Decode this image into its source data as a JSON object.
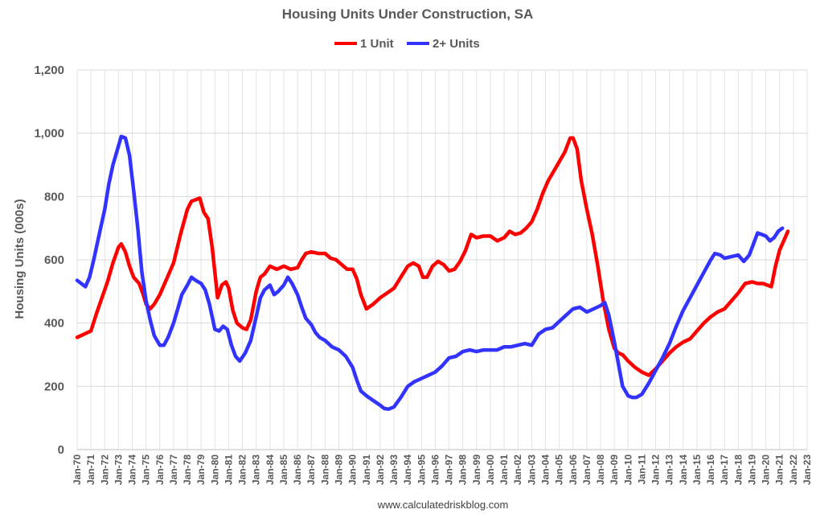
{
  "chart_data": {
    "type": "line",
    "title": "Housing Units Under Construction, SA",
    "xlabel": "",
    "ylabel": "Housing Units (000s)",
    "ylim": [
      0,
      1200
    ],
    "y_ticks": [
      0,
      200,
      400,
      600,
      800,
      1000,
      1200
    ],
    "y_tick_labels": [
      "0",
      "200",
      "400",
      "600",
      "800",
      "1,000",
      "1,200"
    ],
    "x_range": [
      1970,
      2023
    ],
    "x_tick_labels": [
      "Jan-70",
      "Jan-71",
      "Jan-72",
      "Jan-73",
      "Jan-74",
      "Jan-75",
      "Jan-76",
      "Jan-77",
      "Jan-78",
      "Jan-79",
      "Jan-80",
      "Jan-81",
      "Jan-82",
      "Jan-83",
      "Jan-84",
      "Jan-85",
      "Jan-86",
      "Jan-87",
      "Jan-88",
      "Jan-89",
      "Jan-90",
      "Jan-91",
      "Jan-92",
      "Jan-93",
      "Jan-94",
      "Jan-95",
      "Jan-96",
      "Jan-97",
      "Jan-98",
      "Jan-99",
      "Jan-00",
      "Jan-01",
      "Jan-02",
      "Jan-03",
      "Jan-04",
      "Jan-05",
      "Jan-06",
      "Jan-07",
      "Jan-08",
      "Jan-09",
      "Jan-10",
      "Jan-11",
      "Jan-12",
      "Jan-13",
      "Jan-14",
      "Jan-15",
      "Jan-16",
      "Jan-17",
      "Jan-18",
      "Jan-19",
      "Jan-20",
      "Jan-21",
      "Jan-22",
      "Jan-23"
    ],
    "grid": true,
    "legend_position": "top-center",
    "series": [
      {
        "name": "1 Unit",
        "color": "#ff0000",
        "points": [
          [
            1970.0,
            355
          ],
          [
            1970.5,
            365
          ],
          [
            1971.0,
            375
          ],
          [
            1971.4,
            430
          ],
          [
            1971.8,
            480
          ],
          [
            1972.2,
            530
          ],
          [
            1972.6,
            590
          ],
          [
            1973.0,
            640
          ],
          [
            1973.2,
            650
          ],
          [
            1973.5,
            625
          ],
          [
            1973.8,
            580
          ],
          [
            1974.1,
            545
          ],
          [
            1974.5,
            525
          ],
          [
            1974.8,
            490
          ],
          [
            1975.0,
            460
          ],
          [
            1975.3,
            445
          ],
          [
            1975.6,
            460
          ],
          [
            1976.0,
            490
          ],
          [
            1976.5,
            540
          ],
          [
            1977.0,
            590
          ],
          [
            1977.5,
            680
          ],
          [
            1978.0,
            760
          ],
          [
            1978.3,
            785
          ],
          [
            1978.6,
            790
          ],
          [
            1978.9,
            795
          ],
          [
            1979.2,
            750
          ],
          [
            1979.5,
            730
          ],
          [
            1979.8,
            640
          ],
          [
            1980.0,
            560
          ],
          [
            1980.2,
            480
          ],
          [
            1980.5,
            520
          ],
          [
            1980.8,
            530
          ],
          [
            1981.0,
            510
          ],
          [
            1981.3,
            440
          ],
          [
            1981.6,
            400
          ],
          [
            1982.0,
            385
          ],
          [
            1982.3,
            380
          ],
          [
            1982.6,
            410
          ],
          [
            1983.0,
            500
          ],
          [
            1983.3,
            545
          ],
          [
            1983.6,
            555
          ],
          [
            1984.0,
            580
          ],
          [
            1984.5,
            570
          ],
          [
            1985.0,
            580
          ],
          [
            1985.5,
            570
          ],
          [
            1986.0,
            575
          ],
          [
            1986.3,
            600
          ],
          [
            1986.6,
            620
          ],
          [
            1987.0,
            625
          ],
          [
            1987.5,
            620
          ],
          [
            1988.0,
            620
          ],
          [
            1988.4,
            605
          ],
          [
            1988.8,
            600
          ],
          [
            1989.2,
            585
          ],
          [
            1989.6,
            570
          ],
          [
            1990.0,
            570
          ],
          [
            1990.3,
            540
          ],
          [
            1990.6,
            490
          ],
          [
            1991.0,
            445
          ],
          [
            1991.5,
            460
          ],
          [
            1992.0,
            480
          ],
          [
            1992.5,
            495
          ],
          [
            1993.0,
            510
          ],
          [
            1993.5,
            545
          ],
          [
            1994.0,
            580
          ],
          [
            1994.4,
            590
          ],
          [
            1994.8,
            580
          ],
          [
            1995.1,
            545
          ],
          [
            1995.4,
            545
          ],
          [
            1995.8,
            580
          ],
          [
            1996.2,
            595
          ],
          [
            1996.6,
            585
          ],
          [
            1997.0,
            565
          ],
          [
            1997.4,
            570
          ],
          [
            1997.8,
            595
          ],
          [
            1998.2,
            630
          ],
          [
            1998.6,
            680
          ],
          [
            1999.0,
            670
          ],
          [
            1999.5,
            675
          ],
          [
            2000.0,
            675
          ],
          [
            2000.5,
            660
          ],
          [
            2001.0,
            670
          ],
          [
            2001.4,
            690
          ],
          [
            2001.8,
            680
          ],
          [
            2002.2,
            685
          ],
          [
            2002.6,
            700
          ],
          [
            2003.0,
            720
          ],
          [
            2003.4,
            760
          ],
          [
            2003.8,
            810
          ],
          [
            2004.2,
            850
          ],
          [
            2004.6,
            880
          ],
          [
            2005.0,
            910
          ],
          [
            2005.4,
            940
          ],
          [
            2005.8,
            985
          ],
          [
            2006.0,
            985
          ],
          [
            2006.3,
            950
          ],
          [
            2006.6,
            850
          ],
          [
            2007.0,
            760
          ],
          [
            2007.4,
            680
          ],
          [
            2007.8,
            580
          ],
          [
            2008.2,
            470
          ],
          [
            2008.6,
            380
          ],
          [
            2009.0,
            320
          ],
          [
            2009.3,
            305
          ],
          [
            2009.6,
            300
          ],
          [
            2010.0,
            280
          ],
          [
            2010.5,
            260
          ],
          [
            2011.0,
            245
          ],
          [
            2011.5,
            235
          ],
          [
            2012.0,
            255
          ],
          [
            2012.5,
            280
          ],
          [
            2013.0,
            305
          ],
          [
            2013.5,
            325
          ],
          [
            2014.0,
            340
          ],
          [
            2014.5,
            350
          ],
          [
            2015.0,
            375
          ],
          [
            2015.5,
            400
          ],
          [
            2016.0,
            420
          ],
          [
            2016.5,
            435
          ],
          [
            2017.0,
            445
          ],
          [
            2017.5,
            470
          ],
          [
            2018.0,
            495
          ],
          [
            2018.5,
            525
          ],
          [
            2019.0,
            530
          ],
          [
            2019.4,
            525
          ],
          [
            2019.8,
            525
          ],
          [
            2020.1,
            520
          ],
          [
            2020.4,
            515
          ],
          [
            2020.7,
            580
          ],
          [
            2021.0,
            630
          ],
          [
            2021.3,
            660
          ],
          [
            2021.6,
            690
          ]
        ]
      },
      {
        "name": "2+ Units",
        "color": "#3333ff",
        "points": [
          [
            1970.0,
            535
          ],
          [
            1970.3,
            525
          ],
          [
            1970.6,
            515
          ],
          [
            1970.9,
            545
          ],
          [
            1971.2,
            600
          ],
          [
            1971.6,
            680
          ],
          [
            1972.0,
            760
          ],
          [
            1972.3,
            840
          ],
          [
            1972.6,
            900
          ],
          [
            1973.0,
            960
          ],
          [
            1973.2,
            990
          ],
          [
            1973.5,
            985
          ],
          [
            1973.8,
            930
          ],
          [
            1974.1,
            820
          ],
          [
            1974.4,
            700
          ],
          [
            1974.7,
            560
          ],
          [
            1975.0,
            470
          ],
          [
            1975.3,
            410
          ],
          [
            1975.6,
            360
          ],
          [
            1976.0,
            330
          ],
          [
            1976.3,
            330
          ],
          [
            1976.6,
            355
          ],
          [
            1977.0,
            400
          ],
          [
            1977.3,
            445
          ],
          [
            1977.6,
            490
          ],
          [
            1978.0,
            520
          ],
          [
            1978.3,
            545
          ],
          [
            1978.6,
            535
          ],
          [
            1979.0,
            525
          ],
          [
            1979.3,
            505
          ],
          [
            1979.6,
            460
          ],
          [
            1980.0,
            380
          ],
          [
            1980.3,
            375
          ],
          [
            1980.6,
            390
          ],
          [
            1980.9,
            380
          ],
          [
            1981.2,
            330
          ],
          [
            1981.5,
            295
          ],
          [
            1981.8,
            280
          ],
          [
            1982.2,
            305
          ],
          [
            1982.6,
            345
          ],
          [
            1983.0,
            420
          ],
          [
            1983.3,
            480
          ],
          [
            1983.6,
            505
          ],
          [
            1984.0,
            520
          ],
          [
            1984.3,
            490
          ],
          [
            1984.6,
            500
          ],
          [
            1985.0,
            520
          ],
          [
            1985.3,
            545
          ],
          [
            1985.6,
            525
          ],
          [
            1986.0,
            490
          ],
          [
            1986.3,
            450
          ],
          [
            1986.6,
            415
          ],
          [
            1987.0,
            395
          ],
          [
            1987.3,
            370
          ],
          [
            1987.6,
            355
          ],
          [
            1988.0,
            345
          ],
          [
            1988.5,
            325
          ],
          [
            1989.0,
            315
          ],
          [
            1989.5,
            295
          ],
          [
            1990.0,
            260
          ],
          [
            1990.3,
            220
          ],
          [
            1990.6,
            185
          ],
          [
            1991.0,
            170
          ],
          [
            1991.5,
            155
          ],
          [
            1992.0,
            140
          ],
          [
            1992.3,
            130
          ],
          [
            1992.6,
            128
          ],
          [
            1993.0,
            135
          ],
          [
            1993.5,
            165
          ],
          [
            1994.0,
            200
          ],
          [
            1994.5,
            215
          ],
          [
            1995.0,
            225
          ],
          [
            1995.5,
            235
          ],
          [
            1996.0,
            245
          ],
          [
            1996.5,
            265
          ],
          [
            1997.0,
            290
          ],
          [
            1997.5,
            295
          ],
          [
            1998.0,
            310
          ],
          [
            1998.5,
            315
          ],
          [
            1999.0,
            310
          ],
          [
            1999.5,
            315
          ],
          [
            2000.0,
            315
          ],
          [
            2000.5,
            315
          ],
          [
            2001.0,
            325
          ],
          [
            2001.5,
            325
          ],
          [
            2002.0,
            330
          ],
          [
            2002.5,
            335
          ],
          [
            2003.0,
            330
          ],
          [
            2003.5,
            365
          ],
          [
            2004.0,
            380
          ],
          [
            2004.5,
            385
          ],
          [
            2005.0,
            405
          ],
          [
            2005.5,
            425
          ],
          [
            2006.0,
            445
          ],
          [
            2006.5,
            450
          ],
          [
            2007.0,
            435
          ],
          [
            2007.5,
            445
          ],
          [
            2008.0,
            455
          ],
          [
            2008.3,
            465
          ],
          [
            2008.6,
            425
          ],
          [
            2009.0,
            340
          ],
          [
            2009.3,
            270
          ],
          [
            2009.6,
            200
          ],
          [
            2010.0,
            170
          ],
          [
            2010.3,
            165
          ],
          [
            2010.6,
            165
          ],
          [
            2011.0,
            175
          ],
          [
            2011.5,
            210
          ],
          [
            2012.0,
            250
          ],
          [
            2012.5,
            290
          ],
          [
            2013.0,
            335
          ],
          [
            2013.5,
            390
          ],
          [
            2014.0,
            440
          ],
          [
            2014.5,
            480
          ],
          [
            2015.0,
            520
          ],
          [
            2015.5,
            560
          ],
          [
            2016.0,
            600
          ],
          [
            2016.3,
            620
          ],
          [
            2016.7,
            615
          ],
          [
            2017.0,
            605
          ],
          [
            2017.5,
            610
          ],
          [
            2018.0,
            615
          ],
          [
            2018.4,
            595
          ],
          [
            2018.8,
            615
          ],
          [
            2019.1,
            650
          ],
          [
            2019.4,
            685
          ],
          [
            2019.7,
            680
          ],
          [
            2020.0,
            675
          ],
          [
            2020.3,
            660
          ],
          [
            2020.6,
            670
          ],
          [
            2020.9,
            690
          ],
          [
            2021.2,
            700
          ]
        ]
      }
    ],
    "source_text": "www.calculatedriskblog.com"
  }
}
